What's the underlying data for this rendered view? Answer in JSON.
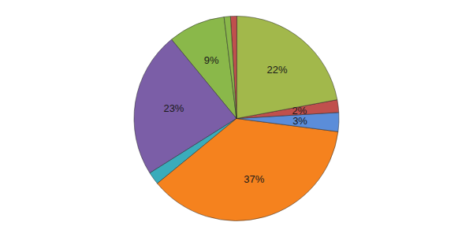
{
  "chart_data": {
    "type": "pie",
    "values": [
      9,
      23,
      2,
      37,
      3,
      2,
      22,
      1,
      1
    ],
    "value_labels": [
      "9%",
      "23%",
      null,
      "37%",
      "3%",
      "2%",
      "22%",
      null,
      null
    ],
    "colors": [
      "#8ab84a",
      "#7b5ea7",
      "#3aacbb",
      "#f5821e",
      "#5b8dd9",
      "#c0504d",
      "#a2b84b",
      "#c0504d",
      "#8ab84a"
    ],
    "data_labels": true
  }
}
